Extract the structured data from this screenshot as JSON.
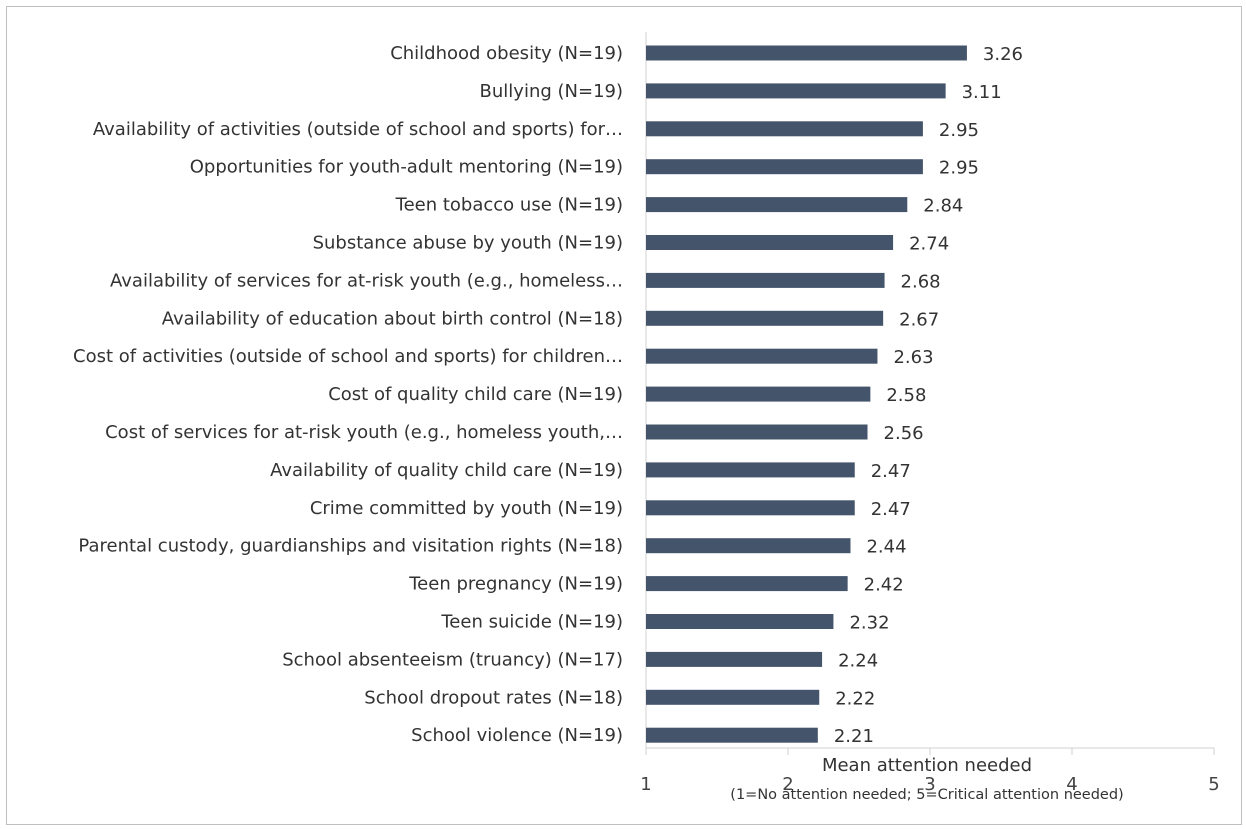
{
  "chart_data": {
    "type": "bar",
    "orientation": "horizontal",
    "title": "",
    "xlabel": "Mean attention needed",
    "xlabel_note": "(1=No attention needed; 5=Critical attention needed)",
    "ylabel": "",
    "xlim": [
      1,
      5
    ],
    "xticks": [
      "1",
      "2",
      "3",
      "4",
      "5"
    ],
    "grid": false,
    "legend": "none",
    "bar_color": "#44546a",
    "categories": [
      "Childhood obesity (N=19)",
      "Bullying (N=19)",
      "Availability of activities (outside of school and sports) for…",
      "Opportunities for youth-adult mentoring (N=19)",
      "Teen tobacco use (N=19)",
      "Substance abuse by youth (N=19)",
      "Availability of services for at-risk youth (e.g., homeless…",
      "Availability of education about birth control (N=18)",
      "Cost of activities (outside of school and sports) for children…",
      "Cost of quality child care (N=19)",
      "Cost of services for at-risk youth (e.g., homeless youth,…",
      "Availability of quality child care (N=19)",
      "Crime committed by youth (N=19)",
      "Parental custody, guardianships and visitation rights (N=18)",
      "Teen pregnancy (N=19)",
      "Teen suicide (N=19)",
      "School absenteeism (truancy) (N=17)",
      "School dropout rates (N=18)",
      "School violence (N=19)"
    ],
    "values": [
      3.26,
      3.11,
      2.95,
      2.95,
      2.84,
      2.74,
      2.68,
      2.67,
      2.63,
      2.58,
      2.56,
      2.47,
      2.47,
      2.44,
      2.42,
      2.32,
      2.24,
      2.22,
      2.21
    ],
    "value_labels": [
      "3.26",
      "3.11",
      "2.95",
      "2.95",
      "2.84",
      "2.74",
      "2.68",
      "2.67",
      "2.63",
      "2.58",
      "2.56",
      "2.47",
      "2.47",
      "2.44",
      "2.42",
      "2.32",
      "2.24",
      "2.22",
      "2.21"
    ]
  }
}
